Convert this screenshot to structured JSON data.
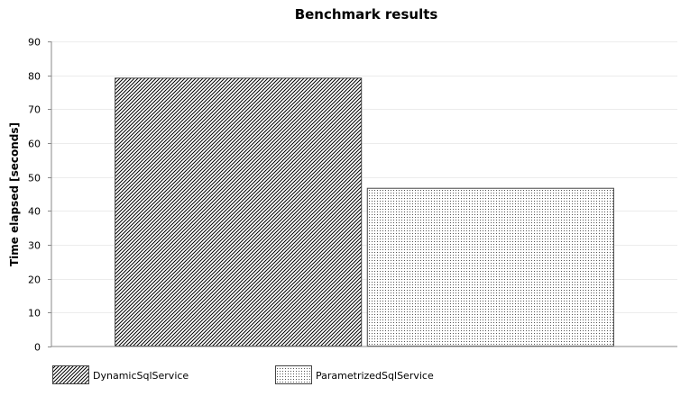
{
  "chart_data": {
    "type": "bar",
    "title": "Benchmark results",
    "xlabel": "",
    "ylabel": "Time elapsed [seconds]",
    "ylim": [
      0,
      90
    ],
    "yticks": [
      0,
      10,
      20,
      30,
      40,
      50,
      60,
      70,
      80,
      90
    ],
    "grid": true,
    "legend_position": "bottom-left",
    "series": [
      {
        "name": "DynamicSqlService",
        "values": [
          79.3
        ],
        "pattern": "diagonal-hatch",
        "color": "#000000"
      },
      {
        "name": "ParametrizedSqlService",
        "values": [
          46.8
        ],
        "pattern": "dots",
        "color": "#000000"
      }
    ]
  }
}
